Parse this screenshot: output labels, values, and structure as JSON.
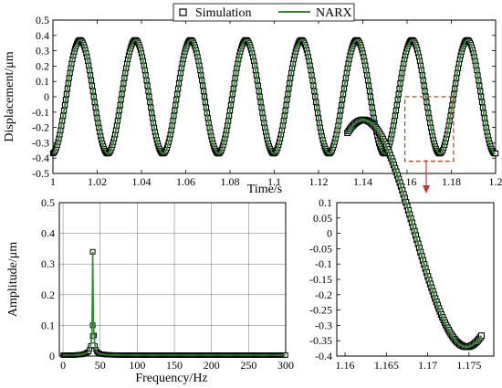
{
  "chart_data": [
    {
      "type": "line",
      "xlabel": "Time/s",
      "ylabel": "Displacement/μm",
      "xlim": [
        1,
        1.2
      ],
      "ylim": [
        -0.5,
        0.5
      ],
      "x_ticks": [
        "1",
        "1.02",
        "1.04",
        "1.06",
        "1.08",
        "1.1",
        "1.12",
        "1.14",
        "1.16",
        "1.18",
        "1.2"
      ],
      "y_ticks": [
        "0.5",
        "0.4",
        "0.3",
        "0.2",
        "0.1",
        "0",
        "-0.1",
        "-0.2",
        "-0.3",
        "-0.4",
        "-0.5"
      ],
      "grid": false,
      "legend": [
        "Simulation",
        "NARX"
      ],
      "legend_position": "top-center",
      "series": [
        {
          "name": "Simulation",
          "marker": "square",
          "color": "#000000",
          "amplitude": 0.37,
          "frequency_hz": 40,
          "phase_deg": -86,
          "x_range": [
            1,
            1.2
          ]
        },
        {
          "name": "NARX",
          "marker": "none",
          "color": "#2e8b2e",
          "amplitude": 0.37,
          "frequency_hz": 40,
          "phase_deg": -86,
          "x_range": [
            1,
            1.2
          ]
        }
      ],
      "highlight_box": {
        "x": [
          1.159,
          1.181
        ],
        "y": [
          -0.42,
          0.0
        ],
        "color": "#a0522d",
        "links_to": "zoom-inset"
      }
    },
    {
      "type": "line",
      "xlabel": "Frequency/Hz",
      "ylabel": "Amplitude/μm",
      "xlim": [
        -5,
        300
      ],
      "ylim": [
        0,
        0.5
      ],
      "x_ticks": [
        "0",
        "50",
        "100",
        "150",
        "200",
        "250",
        "300"
      ],
      "y_ticks": [
        "0.5",
        "0.4",
        "0.3",
        "0.2",
        "0.1",
        "0"
      ],
      "grid": true,
      "series": [
        {
          "name": "Simulation",
          "marker": "square",
          "color": "#000000",
          "x": [
            0,
            5,
            10,
            15,
            20,
            25,
            30,
            35,
            37,
            39,
            40,
            41,
            43,
            45,
            50,
            60,
            80,
            100,
            150,
            200,
            250,
            300
          ],
          "y": [
            0.003,
            0.003,
            0.003,
            0.003,
            0.004,
            0.005,
            0.008,
            0.015,
            0.03,
            0.065,
            0.34,
            0.1,
            0.035,
            0.015,
            0.007,
            0.004,
            0.003,
            0.003,
            0.003,
            0.003,
            0.003,
            0.003
          ]
        },
        {
          "name": "NARX",
          "marker": "none",
          "color": "#2e8b2e",
          "x": [
            0,
            5,
            10,
            15,
            20,
            25,
            30,
            35,
            37,
            39,
            40,
            41,
            43,
            45,
            50,
            60,
            80,
            100,
            150,
            200,
            250,
            300
          ],
          "y": [
            0.003,
            0.003,
            0.003,
            0.003,
            0.004,
            0.005,
            0.008,
            0.015,
            0.03,
            0.065,
            0.34,
            0.1,
            0.035,
            0.015,
            0.007,
            0.004,
            0.003,
            0.003,
            0.003,
            0.003,
            0.003,
            0.003
          ]
        }
      ]
    },
    {
      "type": "line",
      "xlim": [
        1.159,
        1.178
      ],
      "ylim": [
        -0.4,
        0.1
      ],
      "x_ticks": [
        "1.16",
        "1.165",
        "1.17",
        "1.175"
      ],
      "y_ticks": [
        "0.1",
        "0.05",
        "0",
        "-0.05",
        "-0.1",
        "-0.15",
        "-0.2",
        "-0.25",
        "-0.3",
        "-0.35",
        "-0.4"
      ],
      "grid": false,
      "series": [
        {
          "name": "Simulation",
          "marker": "square",
          "color": "#000000",
          "amplitude": 0.37,
          "frequency_hz": 40,
          "phase_deg": -86,
          "x_range": [
            1.1603,
            1.1765
          ]
        },
        {
          "name": "NARX",
          "marker": "none",
          "color": "#2e8b2e",
          "amplitude": 0.37,
          "frequency_hz": 40,
          "phase_deg": -86,
          "x_range": [
            1.1603,
            1.1765
          ]
        }
      ]
    }
  ]
}
